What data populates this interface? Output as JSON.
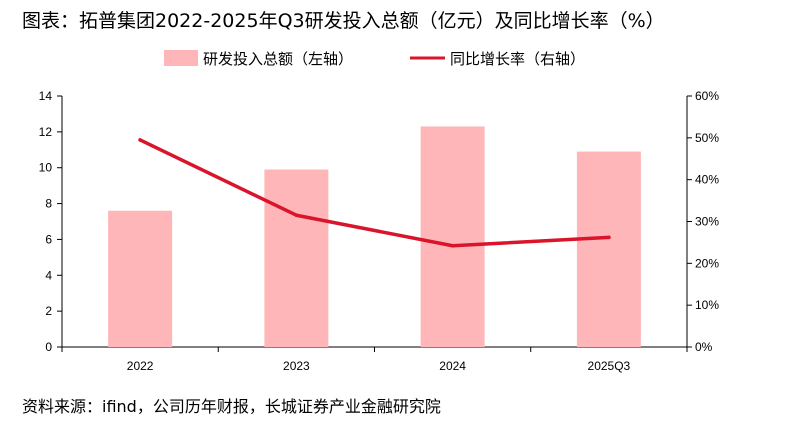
{
  "title": "图表：拓普集团2022-2025年Q3研发投入总额（亿元）及同比增长率（%）",
  "source": "资料来源：ifind，公司历年财报，长城证券产业金融研究院",
  "chart_data": {
    "type": "bar",
    "categories": [
      "2022",
      "2023",
      "2024",
      "2025Q3"
    ],
    "series": [
      {
        "name": "研发投入总额（左轴）",
        "kind": "bar",
        "axis": "left",
        "color": "#ffb6b9",
        "values": [
          7.6,
          9.9,
          12.3,
          10.9
        ]
      },
      {
        "name": "同比增长率（右轴）",
        "kind": "line",
        "axis": "right",
        "color": "#d9142b",
        "values": [
          0.495,
          0.315,
          0.242,
          0.262
        ]
      }
    ],
    "y_left": {
      "min": 0,
      "max": 14,
      "step": 2,
      "ticks": [
        "0",
        "2",
        "4",
        "6",
        "8",
        "10",
        "12",
        "14"
      ]
    },
    "y_right": {
      "min": 0,
      "max": 0.6,
      "step": 0.1,
      "ticks": [
        "0%",
        "10%",
        "20%",
        "30%",
        "40%",
        "50%",
        "60%"
      ]
    },
    "legend": [
      "研发投入总额（左轴）",
      "同比增长率（右轴）"
    ],
    "grid": false,
    "legend_position": "top-center"
  }
}
